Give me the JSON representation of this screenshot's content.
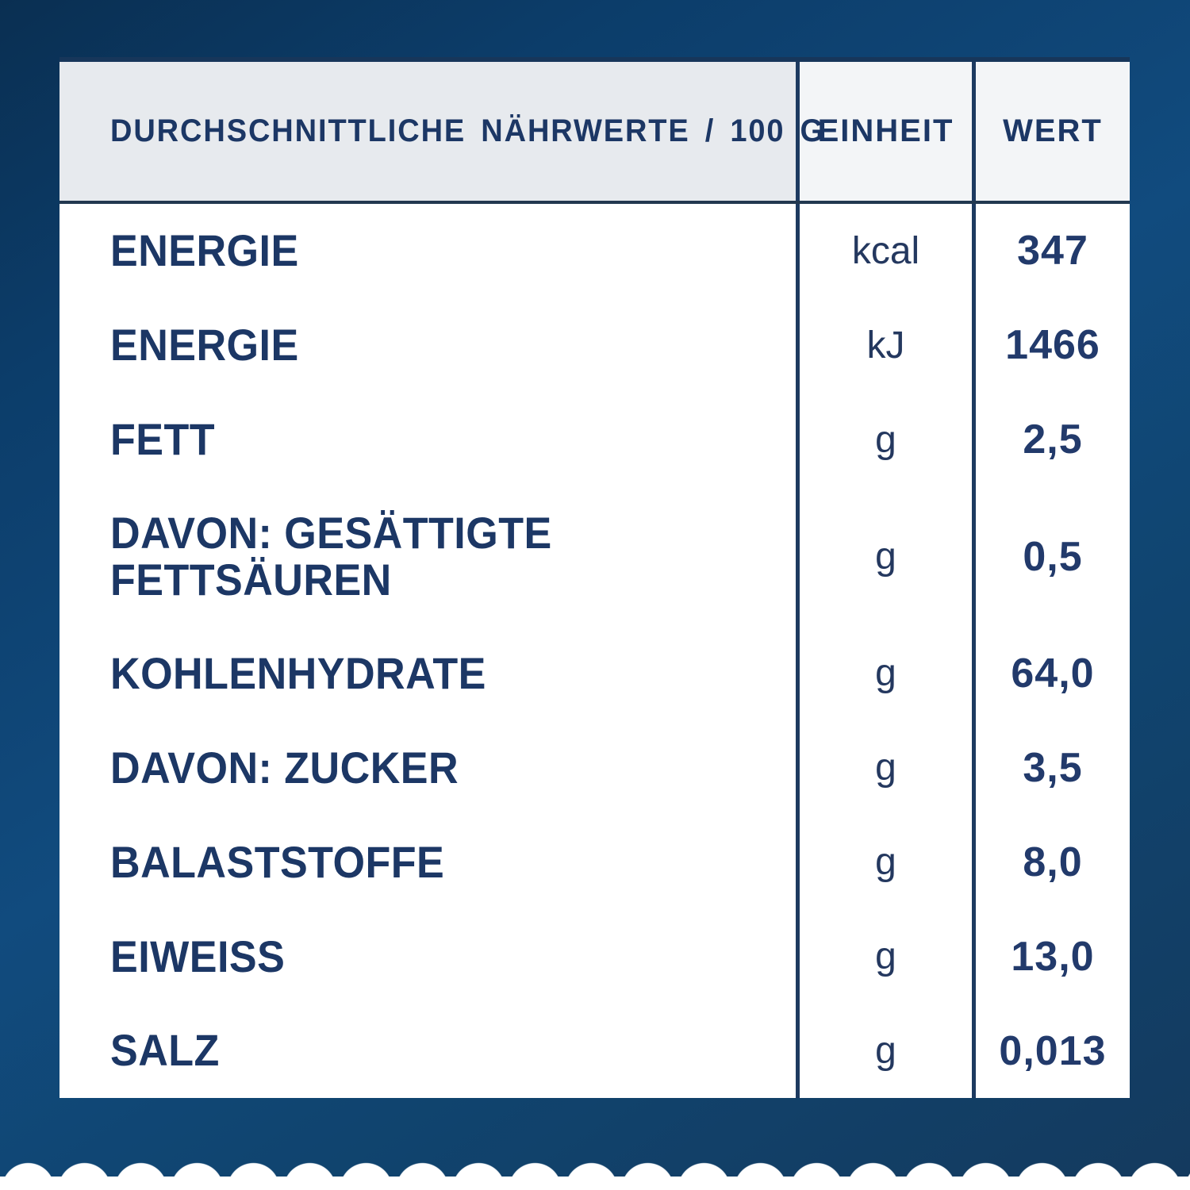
{
  "table": {
    "header": {
      "label": "DURCHSCHNITTLICHE NÄHRWERTE / 100 G",
      "unit": "EINHEIT",
      "value": "WERT"
    },
    "rows": [
      {
        "label": "ENERGIE",
        "unit": "kcal",
        "value": "347"
      },
      {
        "label": "ENERGIE",
        "unit": "kJ",
        "value": "1466"
      },
      {
        "label": "FETT",
        "unit": "g",
        "value": "2,5"
      },
      {
        "label": "DAVON: GESÄTTIGTE\nFETTSÄUREN",
        "unit": "g",
        "value": "0,5"
      },
      {
        "label": "KOHLENHYDRATE",
        "unit": "g",
        "value": "64,0"
      },
      {
        "label": "DAVON: ZUCKER",
        "unit": "g",
        "value": "3,5"
      },
      {
        "label": "BALASTSTOFFE",
        "unit": "g",
        "value": "8,0"
      },
      {
        "label": "EIWEISS",
        "unit": "g",
        "value": "13,0"
      },
      {
        "label": "SALZ",
        "unit": "g",
        "value": "0,013"
      }
    ]
  },
  "colors": {
    "background_navy_top": "#0a2f52",
    "background_navy_mid": "#114b7e",
    "background_navy_bottom": "#143a5e",
    "table_body_bg": "#ffffff",
    "header_label_bg": "#e7eaee",
    "header_unit_value_bg": "#f3f5f7",
    "separator_navy": "#1d3a60",
    "text_navy": "#1c3765",
    "value_navy": "#223a6b",
    "bottom_edge_white": "#ffffff"
  }
}
